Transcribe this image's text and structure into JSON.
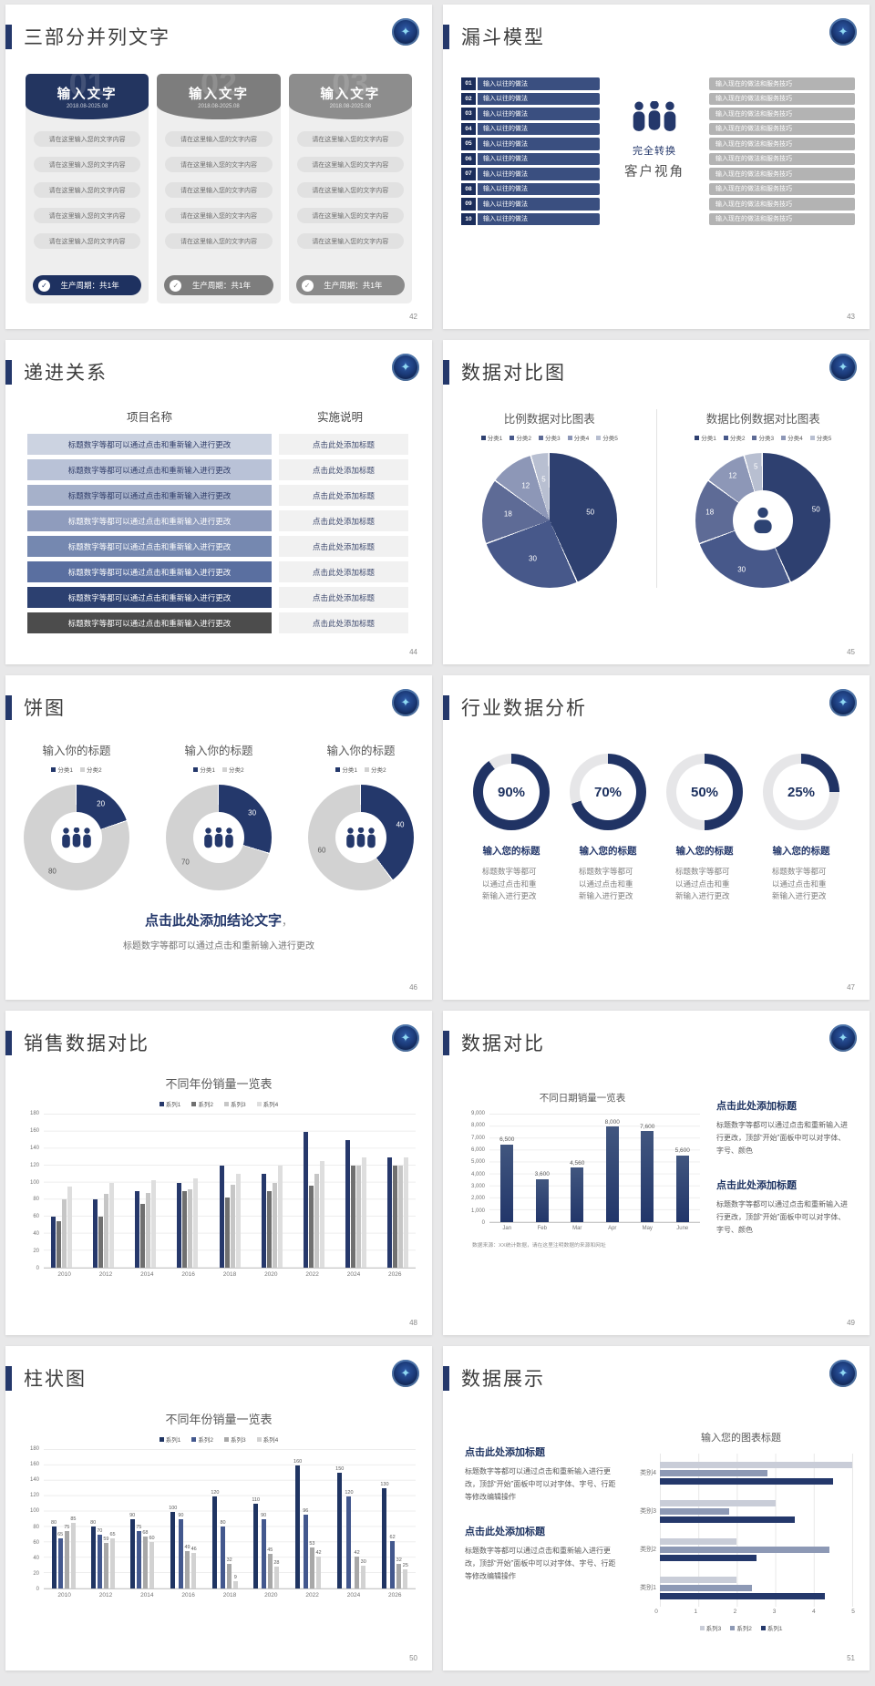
{
  "page_bg": "#e8e8e9",
  "accent_color": "#24386b",
  "slides": {
    "s42": {
      "title": "三部分并列文字",
      "page": "42",
      "cards": [
        {
          "num": "01",
          "header": "输入文字",
          "date": "2018.08-2025.08",
          "header_color": "#233560",
          "footer_color": "#1e3160",
          "items": [
            "请在这里输入您的文字内容",
            "请在这里输入您的文字内容",
            "请在这里输入您的文字内容",
            "请在这里输入您的文字内容",
            "请在这里输入您的文字内容"
          ],
          "footer": "生产周期：共1年"
        },
        {
          "num": "02",
          "header": "输入文字",
          "date": "2018.08-2025.08",
          "header_color": "#7d7d7d",
          "footer_color": "#7d7d7d",
          "items": [
            "请在这里输入您的文字内容",
            "请在这里输入您的文字内容",
            "请在这里输入您的文字内容",
            "请在这里输入您的文字内容",
            "请在这里输入您的文字内容"
          ],
          "footer": "生产周期：共1年"
        },
        {
          "num": "03",
          "header": "输入文字",
          "date": "2018.08-2025.08",
          "header_color": "#8d8d8d",
          "footer_color": "#8a8a8a",
          "items": [
            "请在这里输入您的文字内容",
            "请在这里输入您的文字内容",
            "请在这里输入您的文字内容",
            "请在这里输入您的文字内容",
            "请在这里输入您的文字内容"
          ],
          "footer": "生产周期：共1年"
        }
      ]
    },
    "s43": {
      "title": "漏斗模型",
      "page": "43",
      "step_numbers": [
        "01",
        "02",
        "03",
        "04",
        "05",
        "06",
        "07",
        "08",
        "09",
        "10"
      ],
      "step_text": "输入以往的做法",
      "right_text": "输入现在的做法和服务技巧",
      "center_top": "完全转换",
      "center_bottom": "客户视角"
    },
    "s44": {
      "title": "递进关系",
      "page": "44",
      "col_left": "项目名称",
      "col_right": "实施说明",
      "row_text": "标题数字等都可以通过点击和重新输入进行更改",
      "cell_text": "点击此处添加标题",
      "row_colors": [
        "#ccd3e1",
        "#b9c2d7",
        "#a6b1ca",
        "#8f9cbd",
        "#7588b0",
        "#5a6fa0",
        "#2c4070",
        "#4c4c4c"
      ],
      "dark_text_rows": 3
    },
    "s45": {
      "title": "数据对比图",
      "page": "45"
    },
    "s46": {
      "title": "饼图",
      "page": "46",
      "conclusion_title": "点击此处添加结论文字",
      "conclusion_suffix": "，",
      "conclusion_text": "标题数字等都可以通过点击和重新输入进行更改"
    },
    "s47": {
      "title": "行业数据分析",
      "page": "47",
      "item_title": "输入您的标题",
      "caption": "标题数字等都可以通过点击和重新输入进行更改"
    },
    "s48": {
      "title": "销售数据对比",
      "page": "48"
    },
    "s49": {
      "title": "数据对比",
      "page": "49",
      "source_note": "数据来源：XX统计数据，请在这里注明数据的来源和网址",
      "blocks": [
        {
          "heading": "点击此处添加标题",
          "body": "标题数字等都可以通过点击和重新输入进行更改，顶部“开始”面板中可以对字体、字号、颜色"
        },
        {
          "heading": "点击此处添加标题",
          "body": "标题数字等都可以通过点击和重新输入进行更改，顶部“开始”面板中可以对字体、字号、颜色"
        }
      ]
    },
    "s50": {
      "title": "柱状图",
      "page": "50"
    },
    "s51": {
      "title": "数据展示",
      "page": "51",
      "blocks": [
        {
          "heading": "点击此处添加标题",
          "body": "标题数字等都可以通过点击和重新输入进行更改，顶部“开始”面板中可以对字体、字号、行距等修改编辑操作"
        },
        {
          "heading": "点击此处添加标题",
          "body": "标题数字等都可以通过点击和重新输入进行更改，顶部“开始”面板中可以对字体、字号、行距等修改编辑操作"
        }
      ]
    }
  },
  "chart_data": [
    {
      "type": "pie",
      "title": "比例数据对比图表",
      "legend": [
        "分类1",
        "分类2",
        "分类3",
        "分类4",
        "分类5"
      ],
      "values": [
        50,
        30,
        18,
        12,
        5
      ],
      "colors": [
        "#2e4070",
        "#47588a",
        "#5e6b96",
        "#8d97b7",
        "#b8bfd1"
      ]
    },
    {
      "type": "donut",
      "title": "数据比例数据对比图表",
      "legend": [
        "分类1",
        "分类2",
        "分类3",
        "分类4",
        "分类5"
      ],
      "values": [
        50,
        30,
        18,
        12,
        5
      ],
      "colors": [
        "#2e4070",
        "#47588a",
        "#5e6b96",
        "#8d97b7",
        "#b8bfd1"
      ]
    },
    {
      "type": "donut-set",
      "title_each": "输入你的标题",
      "legend": [
        "分类1",
        "分类2"
      ],
      "colors": [
        "#24386b",
        "#d2d2d2"
      ],
      "values_sets": [
        [
          20,
          80
        ],
        [
          30,
          70
        ],
        [
          40,
          60
        ]
      ]
    },
    {
      "type": "gauge-set",
      "values": [
        90,
        70,
        50,
        25
      ],
      "labels": [
        "90%",
        "70%",
        "50%",
        "25%"
      ],
      "arc_color": "#203364",
      "track_color": "#e6e6e8"
    },
    {
      "type": "bar",
      "title": "不同年份销量一览表",
      "ymax": 180,
      "ystep": 20,
      "categories": [
        "2010",
        "2012",
        "2014",
        "2016",
        "2018",
        "2020",
        "2022",
        "2024",
        "2026"
      ],
      "series": [
        {
          "name": "系列1",
          "color": "#26386b",
          "values": [
            60,
            80,
            90,
            100,
            120,
            110,
            160,
            150,
            130
          ]
        },
        {
          "name": "系列2",
          "color": "#707070",
          "values": [
            55,
            60,
            75,
            90,
            82,
            90,
            96,
            120,
            120
          ]
        },
        {
          "name": "系列3",
          "color": "#c6c6c6",
          "values": [
            80,
            87,
            88,
            92,
            98,
            100,
            110,
            120,
            120
          ]
        },
        {
          "name": "系列4",
          "color": "#dedede",
          "values": [
            95,
            100,
            103,
            105,
            110,
            120,
            125,
            130,
            130
          ]
        }
      ],
      "show_labels": false
    },
    {
      "type": "bar",
      "title": "不同日期销量一览表",
      "ymax": 9000,
      "ystep": 1000,
      "yticks": [
        "9,000",
        "8,000",
        "7,000",
        "6,000",
        "5,000",
        "4,000",
        "3,000",
        "2,000",
        "1,000",
        "0"
      ],
      "categories": [
        "Jan",
        "Feb",
        "Mar",
        "Apr",
        "May",
        "June"
      ],
      "values": [
        6500,
        3600,
        4560,
        8000,
        7600,
        5600
      ],
      "labels": [
        "6,500",
        "3,600",
        "4,560",
        "8,000",
        "7,600",
        "5,600"
      ],
      "bar_color": "#2c4170"
    },
    {
      "type": "bar",
      "title": "不同年份销量一览表",
      "ymax": 180,
      "ystep": 20,
      "categories": [
        "2010",
        "2012",
        "2014",
        "2016",
        "2018",
        "2020",
        "2022",
        "2024",
        "2026"
      ],
      "series": [
        {
          "name": "系列1",
          "color": "#1f3462",
          "values": [
            80,
            80,
            90,
            100,
            120,
            110,
            160,
            150,
            130
          ]
        },
        {
          "name": "系列2",
          "color": "#43588e",
          "values": [
            65,
            70,
            75,
            90,
            80,
            90,
            96,
            120,
            62
          ]
        },
        {
          "name": "系列3",
          "color": "#a8a8a8",
          "values": [
            75,
            59,
            68,
            49,
            32,
            45,
            53,
            42,
            32
          ]
        },
        {
          "name": "系列4",
          "color": "#d2d2d2",
          "values": [
            85,
            65,
            60,
            46,
            9,
            28,
            42,
            30,
            25
          ]
        }
      ],
      "show_labels": true
    },
    {
      "type": "hbar",
      "title": "输入您的图表标题",
      "xmax": 5,
      "xticks": [
        "0",
        "1",
        "2",
        "3",
        "4",
        "5"
      ],
      "categories": [
        "类别1",
        "类别2",
        "类别3",
        "类别4"
      ],
      "series": [
        {
          "name": "系列1",
          "color": "#24386b",
          "values": [
            4.3,
            2.5,
            3.5,
            4.5
          ]
        },
        {
          "name": "系列2",
          "color": "#8d99b5",
          "values": [
            2.4,
            4.4,
            1.8,
            2.8
          ]
        },
        {
          "name": "系列3",
          "color": "#c9cdd8",
          "values": [
            2,
            2,
            3,
            5
          ]
        }
      ],
      "legend_order": [
        "系列3",
        "系列2",
        "系列1"
      ]
    }
  ]
}
